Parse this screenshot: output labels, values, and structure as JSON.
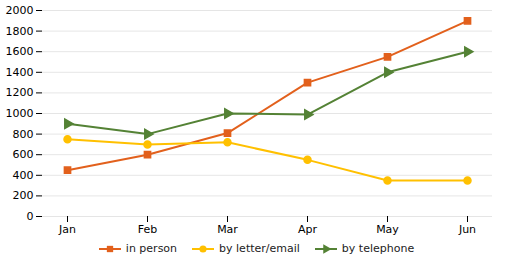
{
  "chart_data": {
    "type": "line",
    "categories": [
      "Jan",
      "Feb",
      "Mar",
      "Apr",
      "May",
      "Jun"
    ],
    "series": [
      {
        "name": "in person",
        "color": "#e2601c",
        "marker": "square",
        "values": [
          450,
          600,
          810,
          1300,
          1550,
          1900
        ]
      },
      {
        "name": "by letter/email",
        "color": "#ffc000",
        "marker": "circle",
        "values": [
          750,
          700,
          720,
          550,
          350,
          350
        ]
      },
      {
        "name": "by telephone",
        "color": "#548235",
        "marker": "triangle-right",
        "values": [
          900,
          800,
          1000,
          990,
          1400,
          1600
        ]
      }
    ],
    "ylim": [
      0,
      2000
    ],
    "yticks": [
      0,
      200,
      400,
      600,
      800,
      1000,
      1200,
      1400,
      1600,
      1800,
      2000
    ],
    "grid": true,
    "legend": "bottom"
  }
}
